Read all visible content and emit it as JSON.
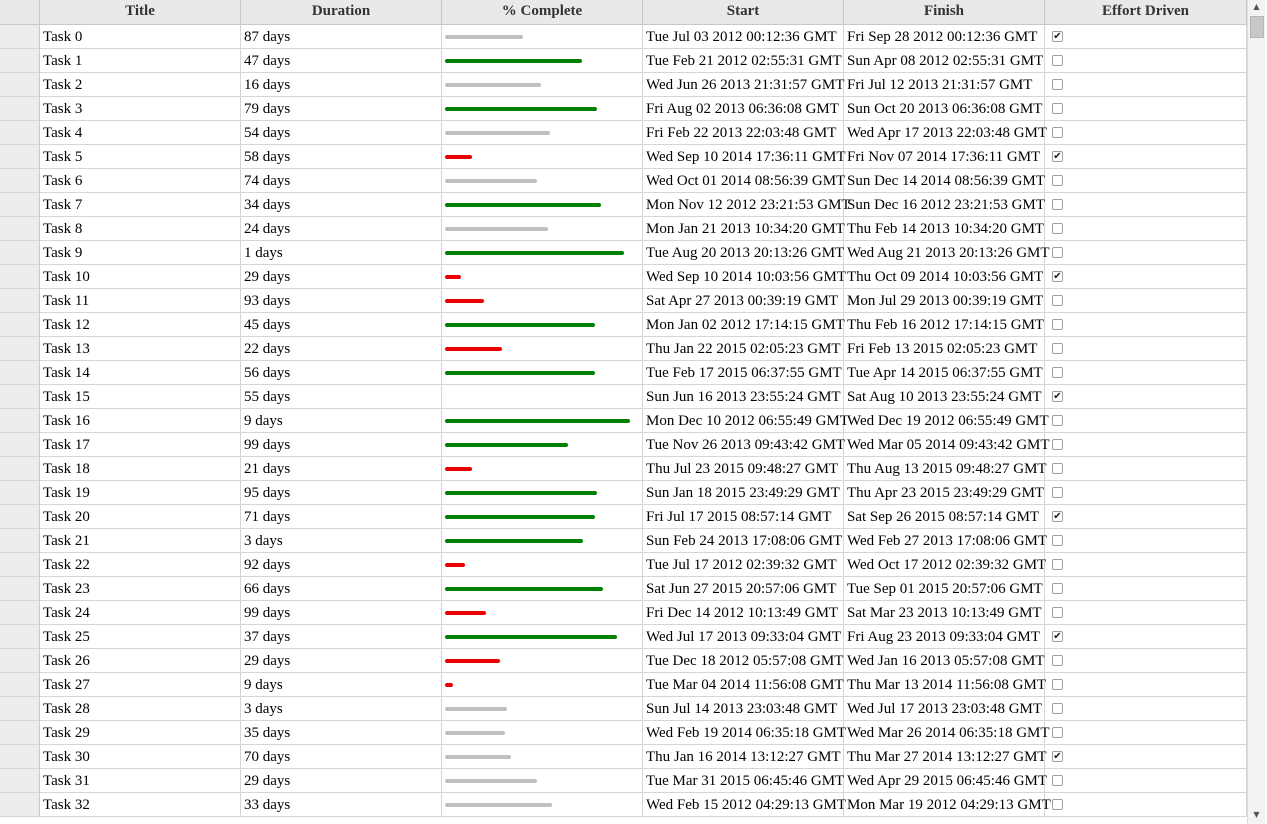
{
  "columns": [
    "Title",
    "Duration",
    "% Complete",
    "Start",
    "Finish",
    "Effort Driven"
  ],
  "colors": {
    "complete_high": "#008000",
    "complete_mid": "#c0c0c0",
    "complete_low": "#ee0000"
  },
  "rows": [
    {
      "title": "Task 0",
      "duration": "87 days",
      "percent": 40,
      "start": "Tue Jul 03 2012 00:12:36 GMT",
      "finish": "Fri Sep 28 2012 00:12:36 GMT",
      "effort": true
    },
    {
      "title": "Task 1",
      "duration": "47 days",
      "percent": 70,
      "start": "Tue Feb 21 2012 02:55:31 GMT",
      "finish": "Sun Apr 08 2012 02:55:31 GMT",
      "effort": false
    },
    {
      "title": "Task 2",
      "duration": "16 days",
      "percent": 49,
      "start": "Wed Jun 26 2013 21:31:57 GMT",
      "finish": "Fri Jul 12 2013 21:31:57 GMT",
      "effort": false
    },
    {
      "title": "Task 3",
      "duration": "79 days",
      "percent": 78,
      "start": "Fri Aug 02 2013 06:36:08 GMT",
      "finish": "Sun Oct 20 2013 06:36:08 GMT",
      "effort": false
    },
    {
      "title": "Task 4",
      "duration": "54 days",
      "percent": 54,
      "start": "Fri Feb 22 2013 22:03:48 GMT",
      "finish": "Wed Apr 17 2013 22:03:48 GMT",
      "effort": false
    },
    {
      "title": "Task 5",
      "duration": "58 days",
      "percent": 14,
      "start": "Wed Sep 10 2014 17:36:11 GMT",
      "finish": "Fri Nov 07 2014 17:36:11 GMT",
      "effort": true
    },
    {
      "title": "Task 6",
      "duration": "74 days",
      "percent": 47,
      "start": "Wed Oct 01 2014 08:56:39 GMT",
      "finish": "Sun Dec 14 2014 08:56:39 GMT",
      "effort": false
    },
    {
      "title": "Task 7",
      "duration": "34 days",
      "percent": 80,
      "start": "Mon Nov 12 2012 23:21:53 GMT",
      "finish": "Sun Dec 16 2012 23:21:53 GMT",
      "effort": false
    },
    {
      "title": "Task 8",
      "duration": "24 days",
      "percent": 53,
      "start": "Mon Jan 21 2013 10:34:20 GMT",
      "finish": "Thu Feb 14 2013 10:34:20 GMT",
      "effort": false
    },
    {
      "title": "Task 9",
      "duration": "1 days",
      "percent": 92,
      "start": "Tue Aug 20 2013 20:13:26 GMT",
      "finish": "Wed Aug 21 2013 20:13:26 GMT",
      "effort": false
    },
    {
      "title": "Task 10",
      "duration": "29 days",
      "percent": 8,
      "start": "Wed Sep 10 2014 10:03:56 GMT",
      "finish": "Thu Oct 09 2014 10:03:56 GMT",
      "effort": true
    },
    {
      "title": "Task 11",
      "duration": "93 days",
      "percent": 20,
      "start": "Sat Apr 27 2013 00:39:19 GMT",
      "finish": "Mon Jul 29 2013 00:39:19 GMT",
      "effort": false
    },
    {
      "title": "Task 12",
      "duration": "45 days",
      "percent": 77,
      "start": "Mon Jan 02 2012 17:14:15 GMT",
      "finish": "Thu Feb 16 2012 17:14:15 GMT",
      "effort": false
    },
    {
      "title": "Task 13",
      "duration": "22 days",
      "percent": 29,
      "start": "Thu Jan 22 2015 02:05:23 GMT",
      "finish": "Fri Feb 13 2015 02:05:23 GMT",
      "effort": false
    },
    {
      "title": "Task 14",
      "duration": "56 days",
      "percent": 77,
      "start": "Tue Feb 17 2015 06:37:55 GMT",
      "finish": "Tue Apr 14 2015 06:37:55 GMT",
      "effort": false
    },
    {
      "title": "Task 15",
      "duration": "55 days",
      "percent": 0,
      "start": "Sun Jun 16 2013 23:55:24 GMT",
      "finish": "Sat Aug 10 2013 23:55:24 GMT",
      "effort": true
    },
    {
      "title": "Task 16",
      "duration": "9 days",
      "percent": 95,
      "start": "Mon Dec 10 2012 06:55:49 GMT",
      "finish": "Wed Dec 19 2012 06:55:49 GMT",
      "effort": false
    },
    {
      "title": "Task 17",
      "duration": "99 days",
      "percent": 63,
      "start": "Tue Nov 26 2013 09:43:42 GMT",
      "finish": "Wed Mar 05 2014 09:43:42 GMT",
      "effort": false
    },
    {
      "title": "Task 18",
      "duration": "21 days",
      "percent": 14,
      "start": "Thu Jul 23 2015 09:48:27 GMT",
      "finish": "Thu Aug 13 2015 09:48:27 GMT",
      "effort": false
    },
    {
      "title": "Task 19",
      "duration": "95 days",
      "percent": 78,
      "start": "Sun Jan 18 2015 23:49:29 GMT",
      "finish": "Thu Apr 23 2015 23:49:29 GMT",
      "effort": false
    },
    {
      "title": "Task 20",
      "duration": "71 days",
      "percent": 77,
      "start": "Fri Jul 17 2015 08:57:14 GMT",
      "finish": "Sat Sep 26 2015 08:57:14 GMT",
      "effort": true
    },
    {
      "title": "Task 21",
      "duration": "3 days",
      "percent": 71,
      "start": "Sun Feb 24 2013 17:08:06 GMT",
      "finish": "Wed Feb 27 2013 17:08:06 GMT",
      "effort": false
    },
    {
      "title": "Task 22",
      "duration": "92 days",
      "percent": 10,
      "start": "Tue Jul 17 2012 02:39:32 GMT",
      "finish": "Wed Oct 17 2012 02:39:32 GMT",
      "effort": false
    },
    {
      "title": "Task 23",
      "duration": "66 days",
      "percent": 81,
      "start": "Sat Jun 27 2015 20:57:06 GMT",
      "finish": "Tue Sep 01 2015 20:57:06 GMT",
      "effort": false
    },
    {
      "title": "Task 24",
      "duration": "99 days",
      "percent": 21,
      "start": "Fri Dec 14 2012 10:13:49 GMT",
      "finish": "Sat Mar 23 2013 10:13:49 GMT",
      "effort": false
    },
    {
      "title": "Task 25",
      "duration": "37 days",
      "percent": 88,
      "start": "Wed Jul 17 2013 09:33:04 GMT",
      "finish": "Fri Aug 23 2013 09:33:04 GMT",
      "effort": true
    },
    {
      "title": "Task 26",
      "duration": "29 days",
      "percent": 28,
      "start": "Tue Dec 18 2012 05:57:08 GMT",
      "finish": "Wed Jan 16 2013 05:57:08 GMT",
      "effort": false
    },
    {
      "title": "Task 27",
      "duration": "9 days",
      "percent": 4,
      "start": "Tue Mar 04 2014 11:56:08 GMT",
      "finish": "Thu Mar 13 2014 11:56:08 GMT",
      "effort": false
    },
    {
      "title": "Task 28",
      "duration": "3 days",
      "percent": 32,
      "start": "Sun Jul 14 2013 23:03:48 GMT",
      "finish": "Wed Jul 17 2013 23:03:48 GMT",
      "effort": false
    },
    {
      "title": "Task 29",
      "duration": "35 days",
      "percent": 31,
      "start": "Wed Feb 19 2014 06:35:18 GMT",
      "finish": "Wed Mar 26 2014 06:35:18 GMT",
      "effort": false
    },
    {
      "title": "Task 30",
      "duration": "70 days",
      "percent": 34,
      "start": "Thu Jan 16 2014 13:12:27 GMT",
      "finish": "Thu Mar 27 2014 13:12:27 GMT",
      "effort": true
    },
    {
      "title": "Task 31",
      "duration": "29 days",
      "percent": 47,
      "start": "Tue Mar 31 2015 06:45:46 GMT",
      "finish": "Wed Apr 29 2015 06:45:46 GMT",
      "effort": false
    },
    {
      "title": "Task 32",
      "duration": "33 days",
      "percent": 55,
      "start": "Wed Feb 15 2012 04:29:13 GMT",
      "finish": "Mon Mar 19 2012 04:29:13 GMT",
      "effort": false
    }
  ]
}
